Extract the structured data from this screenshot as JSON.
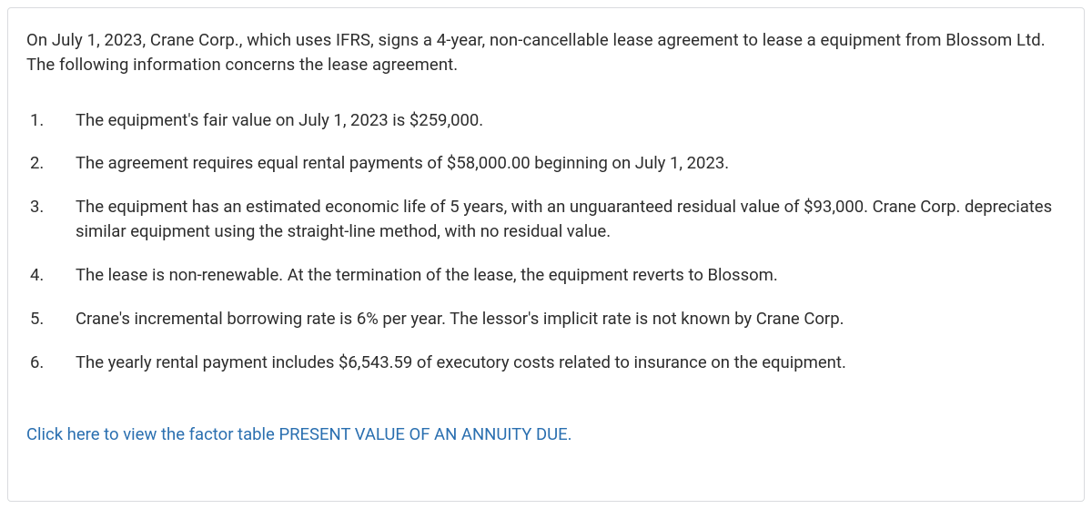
{
  "colors": {
    "text": "#2d2d2d",
    "link": "#2a6fb0",
    "border": "#d9dbde",
    "background": "#ffffff"
  },
  "typography": {
    "base_fontsize_pt": 14,
    "line_height": 1.45,
    "font_family": "system-ui"
  },
  "intro": "On July 1, 2023, Crane Corp., which uses IFRS, signs a 4-year, non-cancellable lease agreement to lease a equipment from Blossom Ltd. The following information concerns the lease agreement.",
  "items": [
    {
      "num": "1.",
      "text": "The equipment's fair value on July 1, 2023 is $259,000."
    },
    {
      "num": "2.",
      "text": "The agreement requires equal rental payments of $58,000.00 beginning on July 1, 2023."
    },
    {
      "num": "3.",
      "text": "The equipment has an estimated economic life of 5 years, with an unguaranteed residual value of $93,000. Crane Corp. depreciates similar equipment using the straight-line method, with no residual value."
    },
    {
      "num": "4.",
      "text": "The lease is non-renewable. At the termination of the lease, the equipment reverts to Blossom."
    },
    {
      "num": "5.",
      "text": "Crane's incremental borrowing rate is 6% per year. The lessor's implicit rate is not known by Crane Corp."
    },
    {
      "num": "6.",
      "text": "The yearly rental payment includes $6,543.59 of executory costs related to insurance on the equipment."
    }
  ],
  "link_text": "Click here to view the factor table PRESENT VALUE OF AN ANNUITY DUE."
}
